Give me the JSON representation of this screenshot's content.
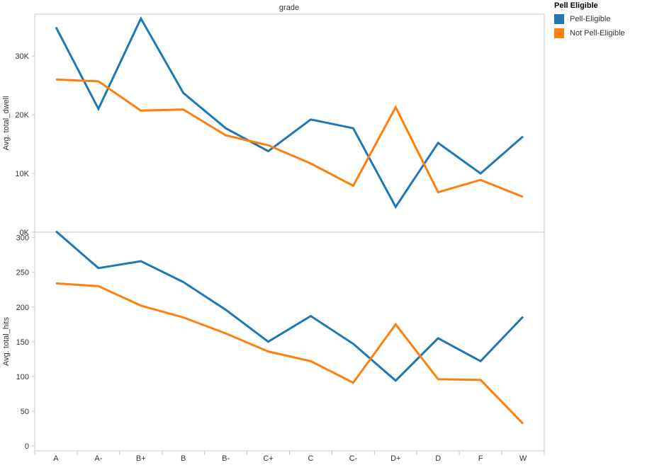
{
  "header": {
    "title": "grade"
  },
  "legend": {
    "title": "Pell Eligible",
    "items": [
      {
        "label": "Pell-Eligible",
        "color": "#1f77b4"
      },
      {
        "label": "Not Pell-Eligible",
        "color": "#ff7f0e"
      }
    ]
  },
  "chart_data": [
    {
      "type": "line",
      "title": "",
      "xlabel": "",
      "ylabel": "Avg. total_dwell",
      "categories": [
        "A",
        "A-",
        "B+",
        "B",
        "B-",
        "C+",
        "C",
        "C-",
        "D+",
        "D",
        "F",
        "W"
      ],
      "ylim": [
        0,
        37500
      ],
      "yticks": [
        0,
        10000,
        20000,
        30000
      ],
      "ytick_labels": [
        "0K",
        "10K",
        "20K",
        "30K"
      ],
      "grid": false,
      "series": [
        {
          "name": "Pell-Eligible",
          "color": "#1f77b4",
          "values": [
            34900,
            21000,
            36400,
            23700,
            17700,
            13800,
            19200,
            17700,
            4300,
            15200,
            10000,
            16300
          ]
        },
        {
          "name": "Not Pell-Eligible",
          "color": "#ff7f0e",
          "values": [
            26000,
            25700,
            20700,
            20900,
            16500,
            14800,
            11700,
            7900,
            21300,
            6800,
            8900,
            6000
          ]
        }
      ]
    },
    {
      "type": "line",
      "title": "",
      "xlabel": "",
      "ylabel": "Avg. total_hits",
      "categories": [
        "A",
        "A-",
        "B+",
        "B",
        "B-",
        "C+",
        "C",
        "C-",
        "D+",
        "D",
        "F",
        "W"
      ],
      "ylim": [
        0,
        318
      ],
      "yticks": [
        0,
        50,
        100,
        150,
        200,
        250,
        300
      ],
      "ytick_labels": [
        "0",
        "50",
        "100",
        "150",
        "200",
        "250",
        "300"
      ],
      "grid": false,
      "series": [
        {
          "name": "Pell-Eligible",
          "color": "#1f77b4",
          "values": [
            309,
            256,
            266,
            236,
            196,
            150,
            187,
            147,
            94,
            155,
            122,
            186
          ]
        },
        {
          "name": "Not Pell-Eligible",
          "color": "#ff7f0e",
          "values": [
            234,
            230,
            202,
            185,
            162,
            136,
            122,
            91,
            175,
            96,
            95,
            32
          ]
        }
      ]
    }
  ]
}
